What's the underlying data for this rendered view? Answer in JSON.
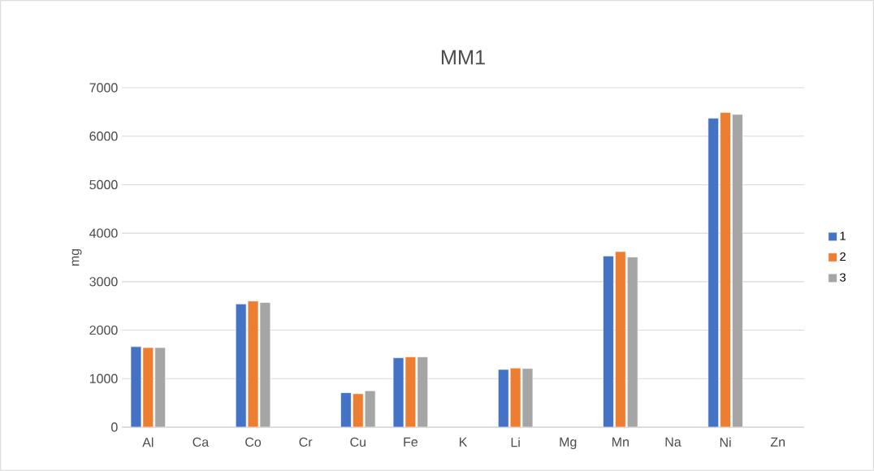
{
  "chart_data": {
    "type": "bar",
    "title": "MM1",
    "ylabel": "mg",
    "categories": [
      "Al",
      "Ca",
      "Co",
      "Cr",
      "Cu",
      "Fe",
      "K",
      "Li",
      "Mg",
      "Mn",
      "Na",
      "Ni",
      "Zn"
    ],
    "series": [
      {
        "name": "1",
        "color": "#4472c4",
        "values": [
          1660,
          null,
          2540,
          null,
          710,
          1430,
          null,
          1190,
          null,
          3530,
          null,
          6370,
          null
        ]
      },
      {
        "name": "2",
        "color": "#ed7d31",
        "values": [
          1640,
          null,
          2600,
          null,
          690,
          1450,
          null,
          1220,
          null,
          3620,
          null,
          6490,
          null
        ]
      },
      {
        "name": "3",
        "color": "#a5a5a5",
        "values": [
          1640,
          null,
          2570,
          null,
          750,
          1450,
          null,
          1210,
          null,
          3510,
          null,
          6450,
          null
        ]
      }
    ],
    "ylim": [
      0,
      7000
    ],
    "yticks": [
      0,
      1000,
      2000,
      3000,
      4000,
      5000,
      6000,
      7000
    ],
    "grid": "y",
    "legend": "right"
  }
}
